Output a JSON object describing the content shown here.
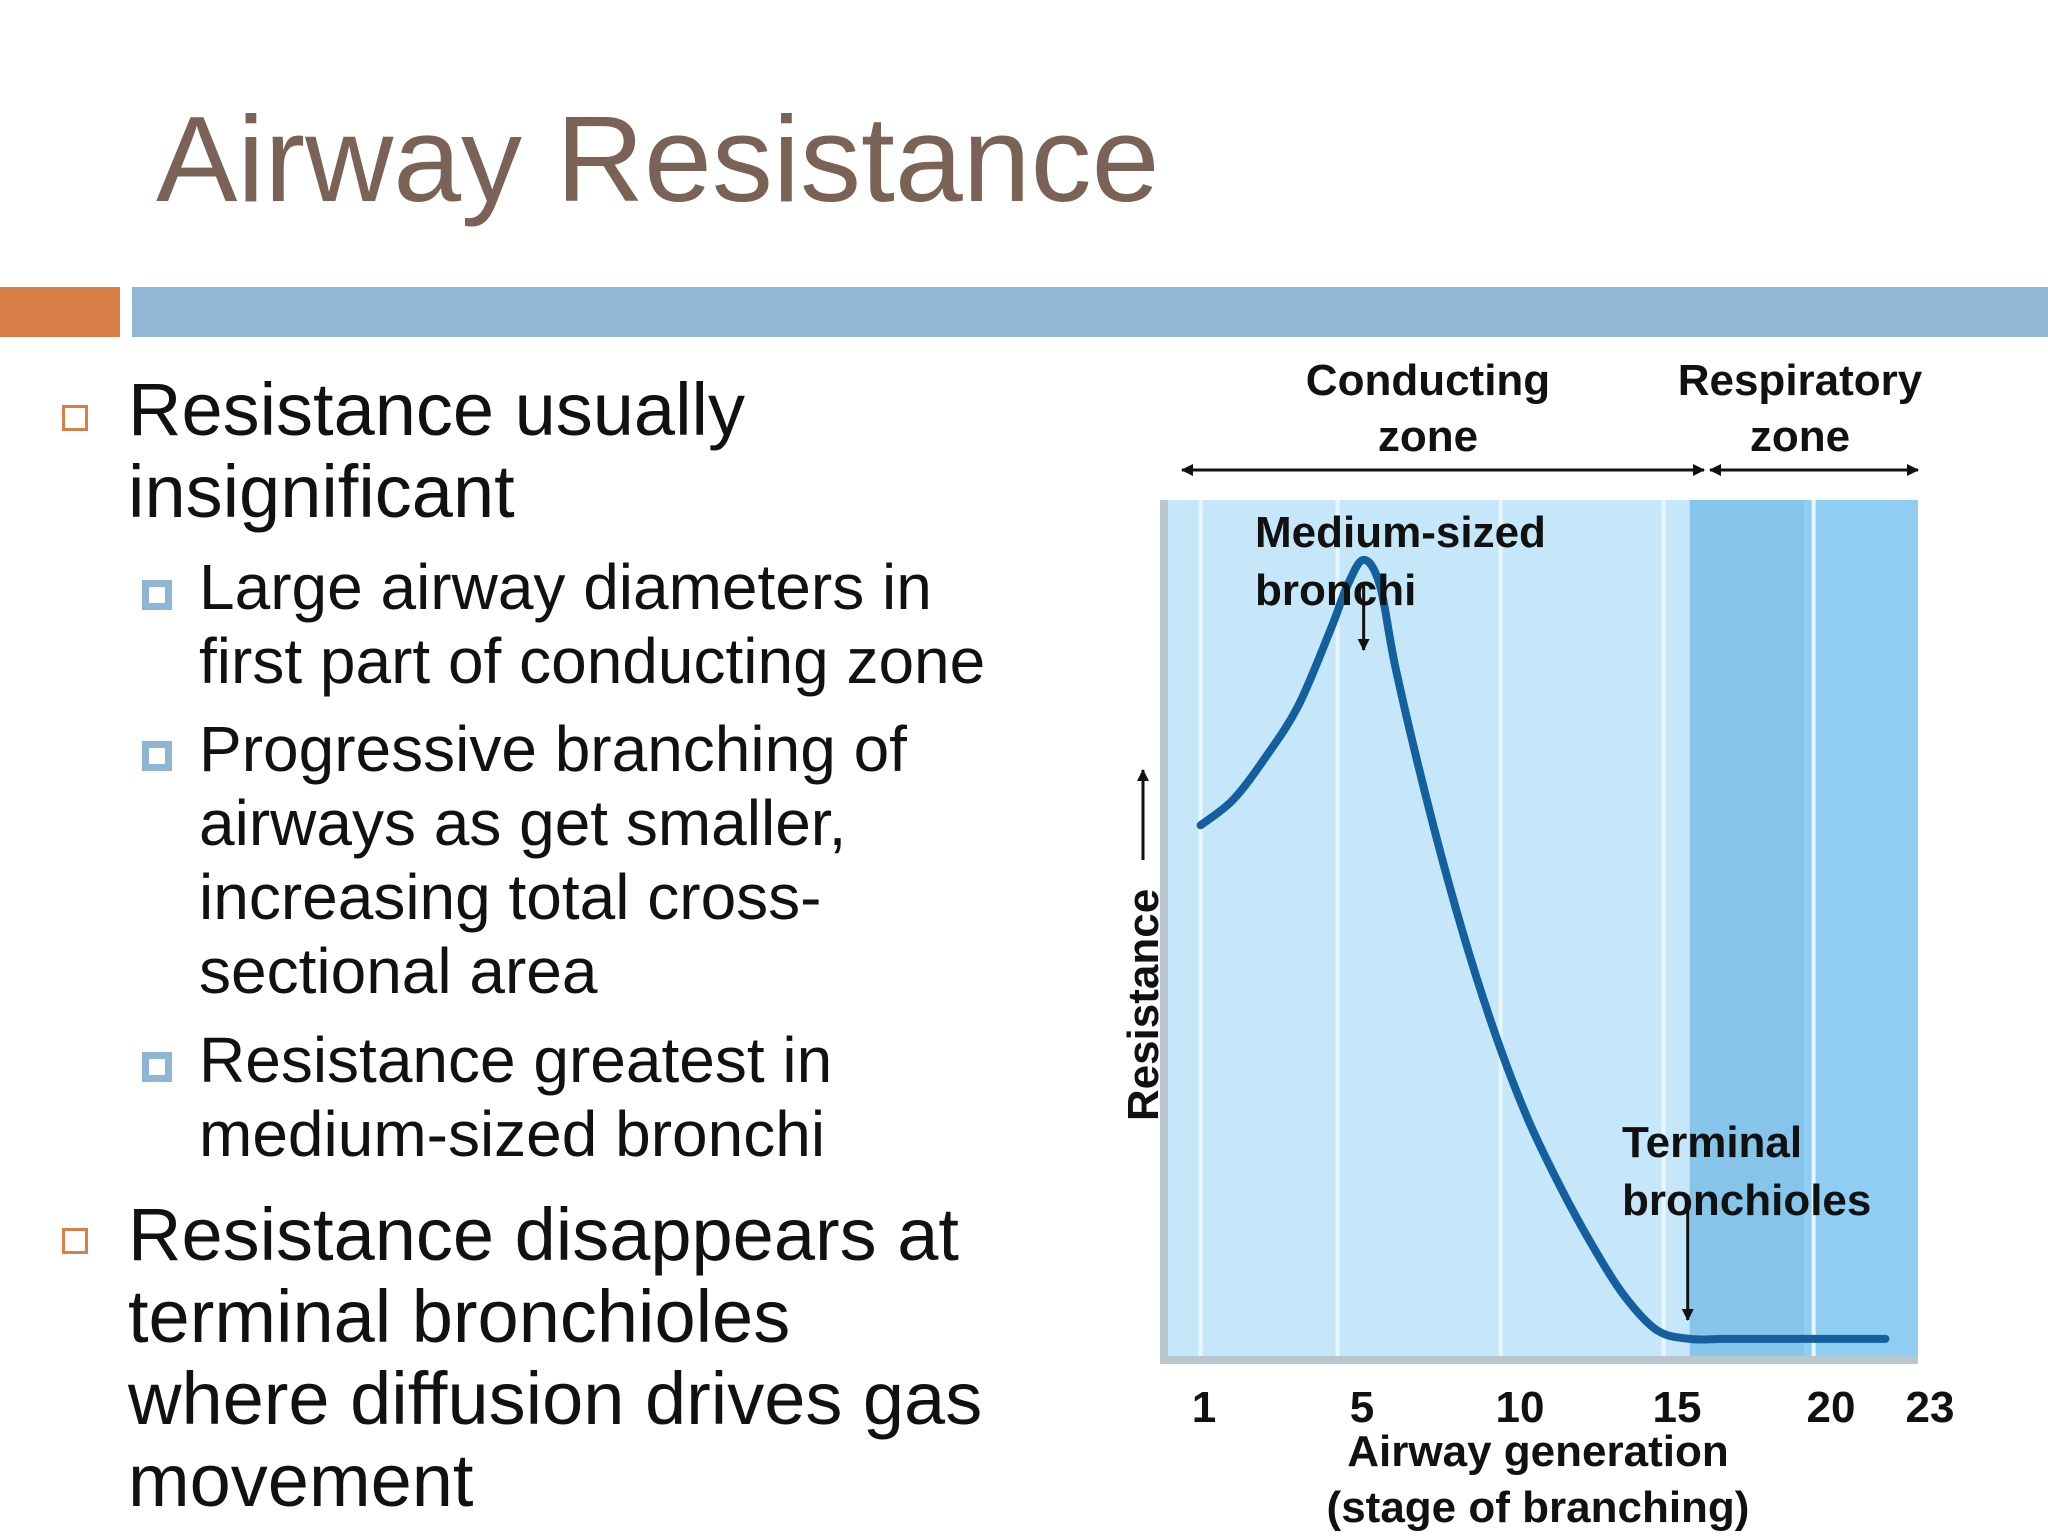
{
  "slide": {
    "title": "Airway Resistance",
    "colors": {
      "accent": "#d77f47",
      "title_bar": "#92b6d5",
      "title_text": "#7a6356"
    }
  },
  "bullets": {
    "item1": {
      "lines": [
        "Resistance usually",
        "insignificant"
      ],
      "sub": [
        {
          "lines": [
            "Large airway diameters in",
            "first part of conducting zone"
          ]
        },
        {
          "lines": [
            "Progressive branching of",
            "airways as get smaller,",
            "increasing total cross-",
            "sectional area"
          ]
        },
        {
          "lines": [
            "Resistance greatest in",
            "medium-sized bronchi"
          ]
        }
      ]
    },
    "item2": {
      "lines": [
        "Resistance disappears at",
        "terminal bronchioles",
        "where diffusion drives gas",
        "movement"
      ]
    }
  },
  "chart_data": {
    "type": "line",
    "xlabel": [
      "Airway generation",
      "(stage of branching)"
    ],
    "ylabel": "Resistance",
    "x_ticks": [
      1,
      5,
      10,
      15,
      20,
      23
    ],
    "xlim": [
      0.5,
      23
    ],
    "zones": [
      {
        "label": [
          "Conducting",
          "zone"
        ],
        "x_range": [
          0,
          16
        ]
      },
      {
        "label": [
          "Respiratory",
          "zone"
        ],
        "x_range": [
          16,
          23
        ]
      }
    ],
    "annotations": [
      {
        "label": [
          "Medium-sized",
          "bronchi"
        ],
        "x": 6
      },
      {
        "label": [
          "Terminal",
          "bronchioles"
        ],
        "x": 16
      }
    ],
    "series": [
      {
        "x": [
          1,
          2,
          3,
          4,
          5,
          5.5,
          6,
          6.5,
          7,
          8,
          9,
          10,
          11,
          12,
          13,
          14,
          15,
          16,
          17,
          18,
          19,
          20,
          21,
          22
        ],
        "y": [
          0.62,
          0.65,
          0.7,
          0.76,
          0.85,
          0.9,
          0.93,
          0.9,
          0.8,
          0.64,
          0.5,
          0.38,
          0.28,
          0.2,
          0.13,
          0.07,
          0.03,
          0.02,
          0.02,
          0.02,
          0.02,
          0.02,
          0.02,
          0.02
        ]
      }
    ],
    "colors": {
      "curve": "#14609f",
      "conducting_bg": "#c6e7fa",
      "respiratory_bg": "#8fcdf2"
    }
  }
}
